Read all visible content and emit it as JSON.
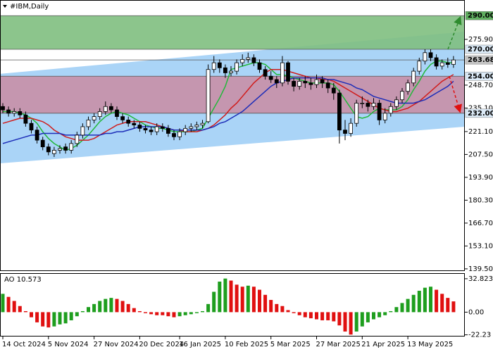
{
  "chart_data": [
    {
      "type": "candlestick",
      "title": "#IBM,Daily",
      "categories": [
        "14 Oct 2024",
        null,
        null,
        null,
        null,
        null,
        null,
        null,
        "5 Nov 2024",
        null,
        null,
        null,
        null,
        null,
        null,
        null,
        "27 Nov 2024",
        null,
        null,
        null,
        null,
        null,
        null,
        null,
        "20 Dec 2024",
        null,
        null,
        null,
        null,
        null,
        null,
        "16 Jan 2025",
        null,
        null,
        null,
        null,
        null,
        null,
        null,
        "10 Feb 2025",
        null,
        null,
        null,
        null,
        null,
        null,
        null,
        "5 Mar 2025",
        null,
        null,
        null,
        null,
        null,
        null,
        null,
        "27 Mar 2025",
        null,
        null,
        null,
        null,
        null,
        null,
        null,
        "21 Apr 2025",
        null,
        null,
        null,
        null,
        null,
        null,
        null,
        "13 May 2025",
        null,
        null,
        null,
        null,
        null,
        null,
        null,
        null
      ],
      "open": [
        236,
        234,
        232,
        233,
        231,
        226,
        222,
        216,
        212,
        208,
        210,
        212,
        210,
        214,
        219,
        224,
        228,
        230,
        233,
        236,
        234,
        230,
        228,
        226,
        225,
        223,
        222,
        221,
        224,
        223,
        220,
        218,
        221,
        223,
        224,
        225,
        227,
        258,
        262,
        259,
        256,
        257,
        262,
        264,
        265,
        262,
        258,
        254,
        252,
        250,
        262,
        251,
        248,
        251,
        250,
        249,
        252,
        250,
        247,
        244,
        222,
        220,
        226,
        238,
        238,
        236,
        238,
        228,
        232,
        236,
        240,
        245,
        250,
        257,
        263,
        268,
        265,
        260,
        262,
        261
      ],
      "high": [
        238,
        236,
        235,
        235,
        233,
        228,
        224,
        218,
        214,
        212,
        213,
        214,
        216,
        221,
        226,
        230,
        232,
        235,
        239,
        238,
        236,
        232,
        230,
        228,
        227,
        225,
        224,
        226,
        226,
        225,
        222,
        223,
        225,
        226,
        227,
        228,
        261,
        266,
        264,
        261,
        260,
        264,
        267,
        268,
        267,
        264,
        260,
        257,
        254,
        266,
        263,
        253,
        253,
        254,
        253,
        255,
        254,
        252,
        250,
        246,
        228,
        229,
        240,
        242,
        240,
        241,
        240,
        235,
        238,
        242,
        247,
        252,
        259,
        265,
        270,
        270,
        267,
        264,
        265,
        266
      ],
      "low": [
        232,
        230,
        230,
        229,
        224,
        220,
        214,
        210,
        207,
        206,
        208,
        208,
        208,
        212,
        217,
        222,
        226,
        228,
        231,
        232,
        228,
        226,
        224,
        223,
        221,
        220,
        219,
        219,
        221,
        218,
        216,
        216,
        219,
        221,
        222,
        223,
        226,
        256,
        256,
        253,
        254,
        255,
        260,
        262,
        260,
        256,
        252,
        250,
        247,
        248,
        249,
        245,
        246,
        247,
        246,
        247,
        247,
        244,
        240,
        214,
        216,
        218,
        224,
        235,
        233,
        234,
        225,
        226,
        230,
        234,
        238,
        243,
        248,
        255,
        261,
        263,
        258,
        258,
        259,
        259
      ],
      "close": [
        234,
        232,
        233,
        231,
        226,
        222,
        216,
        212,
        209,
        210,
        211,
        210,
        214,
        219,
        224,
        228,
        230,
        233,
        236,
        234,
        230,
        228,
        226,
        225,
        223,
        222,
        221,
        224,
        223,
        220,
        218,
        221,
        223,
        224,
        225,
        226,
        258,
        262,
        259,
        256,
        257,
        262,
        264,
        265,
        262,
        258,
        254,
        252,
        250,
        262,
        251,
        248,
        251,
        250,
        249,
        252,
        250,
        247,
        244,
        222,
        220,
        226,
        238,
        238,
        236,
        238,
        228,
        232,
        236,
        240,
        245,
        250,
        257,
        263,
        268,
        265,
        260,
        262,
        261,
        263.68
      ],
      "up_color": "#ffffff",
      "down_color": "#000000",
      "lines": [
        {
          "color": "#22b83a",
          "values": [
            233,
            233,
            233,
            232,
            231,
            229,
            226,
            221,
            217,
            214,
            212,
            210,
            211,
            213,
            216,
            219,
            223,
            227,
            230,
            232,
            233,
            232,
            231,
            229,
            227,
            225,
            224,
            223,
            223,
            222,
            221,
            221,
            221,
            221,
            222,
            223,
            229,
            235,
            241,
            248,
            258,
            259,
            260,
            261,
            262,
            262,
            261,
            258,
            255,
            255,
            254,
            253,
            252,
            251,
            250,
            250,
            250,
            250,
            249,
            245,
            240,
            235,
            230,
            229,
            230,
            233,
            235,
            234,
            234,
            234,
            236,
            240,
            246,
            251,
            257,
            261,
            263,
            263,
            262,
            262
          ]
        },
        {
          "color": "#d01c1c",
          "values": [
            226,
            227,
            228,
            229,
            229,
            229,
            228,
            227,
            225,
            222,
            220,
            218,
            217,
            216,
            216,
            216,
            217,
            219,
            221,
            223,
            225,
            226,
            227,
            227,
            227,
            227,
            226,
            225,
            224,
            223,
            222,
            222,
            221,
            221,
            221,
            222,
            223,
            225,
            228,
            231,
            235,
            238,
            242,
            246,
            250,
            253,
            256,
            258,
            258,
            258,
            257,
            256,
            255,
            254,
            253,
            253,
            252,
            252,
            251,
            249,
            247,
            245,
            243,
            241,
            239,
            237,
            235,
            234,
            233,
            233,
            234,
            235,
            237,
            239,
            242,
            245,
            248,
            251,
            253,
            255
          ]
        },
        {
          "color": "#1d2db8",
          "values": [
            214,
            215,
            216,
            217,
            218,
            219,
            219,
            220,
            220,
            220,
            220,
            219,
            219,
            219,
            219,
            219,
            219,
            219,
            220,
            220,
            221,
            221,
            222,
            223,
            224,
            224,
            224,
            224,
            224,
            223,
            222,
            222,
            222,
            222,
            222,
            222,
            223,
            224,
            226,
            227,
            229,
            231,
            233,
            236,
            239,
            242,
            245,
            248,
            250,
            251,
            252,
            253,
            253,
            253,
            253,
            253,
            253,
            252,
            252,
            251,
            250,
            249,
            247,
            246,
            244,
            242,
            241,
            240,
            239,
            238,
            238,
            238,
            238,
            239,
            240,
            242,
            244,
            246,
            248,
            251
          ]
        }
      ],
      "channel": {
        "color": "#aad4f7",
        "upper": [
          255.4,
          280.5
        ],
        "lower": [
          202.2,
          224
        ]
      },
      "zones": [
        {
          "from": 270,
          "to": 290,
          "color": "#80bf80"
        },
        {
          "from": 232,
          "to": 254,
          "color": "#c88fa6"
        }
      ],
      "levels": [
        {
          "value": 290,
          "label": "290.00",
          "color": "#5fae5f"
        },
        {
          "value": 270,
          "label": "270.00",
          "color": "#dcebf8"
        },
        {
          "value": 263.68,
          "label": "263.68",
          "color": "#c8c8c8"
        },
        {
          "value": 254,
          "label": "254.00",
          "color": "#dcebf8"
        },
        {
          "value": 232,
          "label": "232.00",
          "color": "#dcebf8"
        }
      ],
      "ylim": [
        138.2,
        299.3
      ],
      "yticks": [
        {
          "value": 275.9,
          "label": "275.90"
        },
        {
          "value": 248.7,
          "label": "248.70"
        },
        {
          "value": 235.1,
          "label": "235.10"
        },
        {
          "value": 221.1,
          "label": "221.10"
        },
        {
          "value": 207.5,
          "label": "207.50"
        },
        {
          "value": 193.9,
          "label": "193.90"
        },
        {
          "value": 180.3,
          "label": "180.30"
        },
        {
          "value": 166.7,
          "label": "166.70"
        },
        {
          "value": 153.1,
          "label": "153.10"
        },
        {
          "value": 139.5,
          "label": "139.50"
        }
      ]
    },
    {
      "type": "histogram",
      "title": "AO 10.573",
      "values": [
        18,
        15,
        11,
        6,
        1,
        -5,
        -10,
        -14,
        -15,
        -14,
        -12,
        -11,
        -8,
        -4,
        1,
        5,
        8,
        11,
        13,
        14,
        13,
        11,
        8,
        4,
        1,
        -1,
        -2,
        -3,
        -3,
        -4,
        -5,
        -4,
        -3,
        -2,
        -1,
        1,
        8,
        20,
        30,
        33,
        31,
        27,
        25,
        26,
        25,
        22,
        17,
        12,
        8,
        6,
        2,
        -1,
        -3,
        -5,
        -6,
        -7,
        -8,
        -8,
        -9,
        -13,
        -19,
        -22,
        -19,
        -14,
        -10,
        -7,
        -5,
        -3,
        1,
        5,
        9,
        13,
        17,
        21,
        24,
        25,
        22,
        18,
        14,
        10.573
      ],
      "rise_color": "#1e9e1e",
      "fall_color": "#e01010",
      "ylim": [
        -23.9,
        37.6
      ],
      "yticks": [
        32.823,
        {
          "value": 0,
          "label": "0.00"
        },
        -22.23
      ]
    }
  ]
}
